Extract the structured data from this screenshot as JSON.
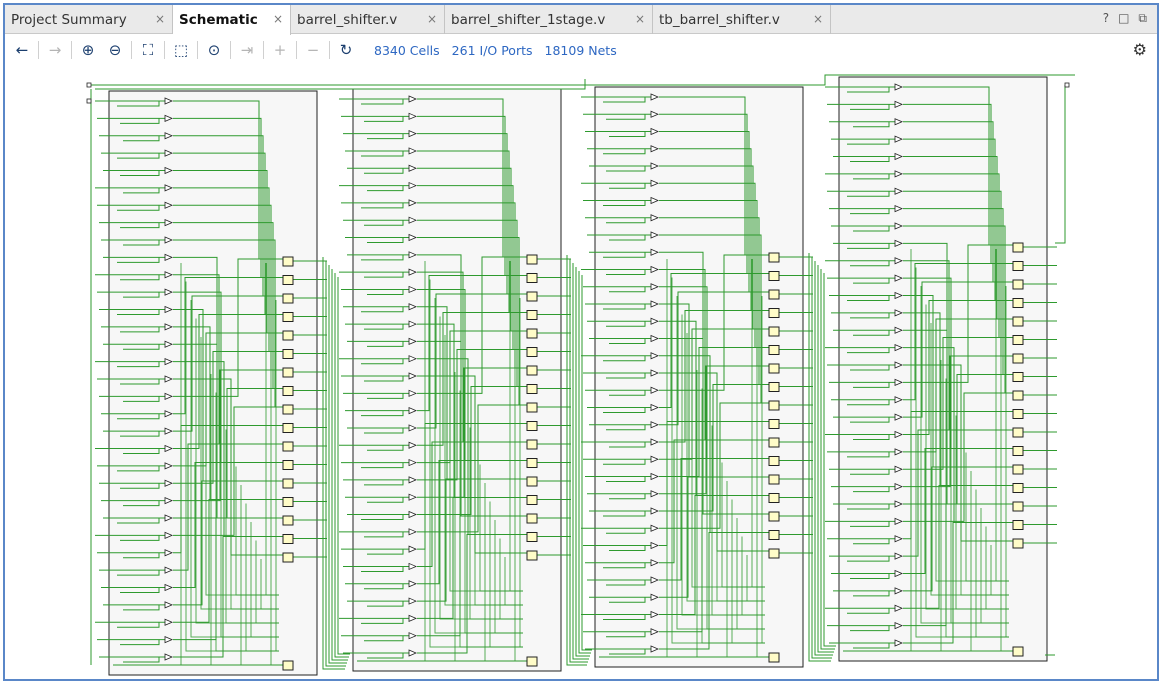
{
  "tabs": [
    {
      "label": "Project Summary",
      "active": false
    },
    {
      "label": "Schematic",
      "active": true
    },
    {
      "label": "barrel_shifter.v",
      "active": false
    },
    {
      "label": "barrel_shifter_1stage.v",
      "active": false
    },
    {
      "label": "tb_barrel_shifter.v",
      "active": false
    }
  ],
  "tab_close_glyph": "×",
  "window_controls": {
    "help": "?",
    "maximize": "□",
    "float": "⧉"
  },
  "toolbar": {
    "icons": [
      "back-arrow-icon",
      "forward-arrow-icon",
      "zoom-in-icon",
      "zoom-out-icon",
      "zoom-fit-icon",
      "zoom-area-icon",
      "select-center-icon",
      "expand-cell-icon",
      "add-icon",
      "remove-icon",
      "refresh-icon"
    ],
    "glyphs": {
      "back": "←",
      "forward": "→",
      "zoom_in": "⊕",
      "zoom_out": "⊖",
      "fit": "⛶",
      "area": "⬚",
      "center": "⊙",
      "expand": "⇥",
      "add": "+",
      "remove": "−",
      "refresh": "↻",
      "settings": "⚙"
    },
    "cells": "8340 Cells",
    "io_ports": "261 I/O Ports",
    "nets": "18109 Nets"
  },
  "schematic": {
    "blocks": 4,
    "buffers_per_block": 33,
    "flops_per_block": 17,
    "colors": {
      "wire": "#2e9a2e",
      "block_fill": "#f7f7f7",
      "block_border": "#222222",
      "flop_fill": "#fffcc8"
    }
  }
}
